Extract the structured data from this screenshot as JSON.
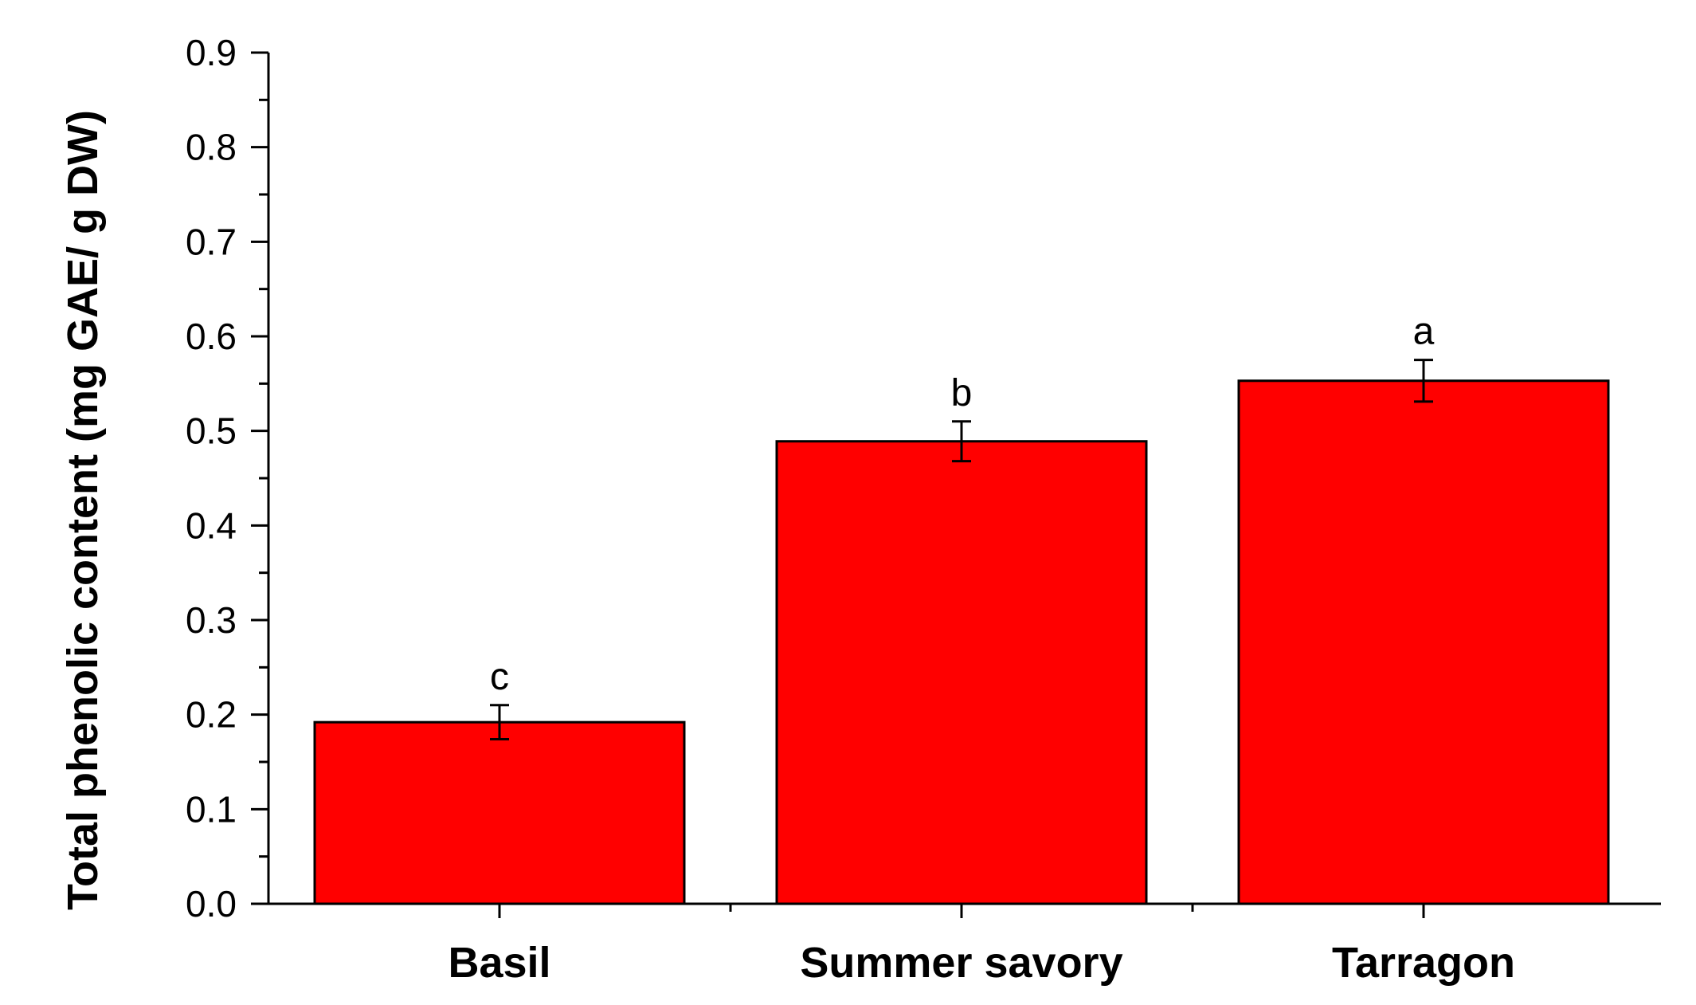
{
  "chart_data": {
    "type": "bar",
    "categories": [
      "Basil",
      "Summer savory",
      "Tarragon"
    ],
    "values": [
      0.192,
      0.489,
      0.553
    ],
    "errors": [
      0.018,
      0.021,
      0.022
    ],
    "significance_labels": [
      "c",
      "b",
      "a"
    ],
    "title": "",
    "xlabel": "",
    "ylabel": "Total phenolic content (mg GAE/ g DW)",
    "ylim": [
      0.0,
      0.9
    ],
    "yticks": [
      0.0,
      0.1,
      0.2,
      0.3,
      0.4,
      0.5,
      0.6,
      0.7,
      0.8,
      0.9
    ],
    "ytick_labels": [
      "0.0",
      "0.1",
      "0.2",
      "0.3",
      "0.4",
      "0.5",
      "0.6",
      "0.7",
      "0.8",
      "0.9"
    ],
    "grid": false,
    "bar_color": "#ff0000",
    "bar_edge_color": "#000000"
  }
}
